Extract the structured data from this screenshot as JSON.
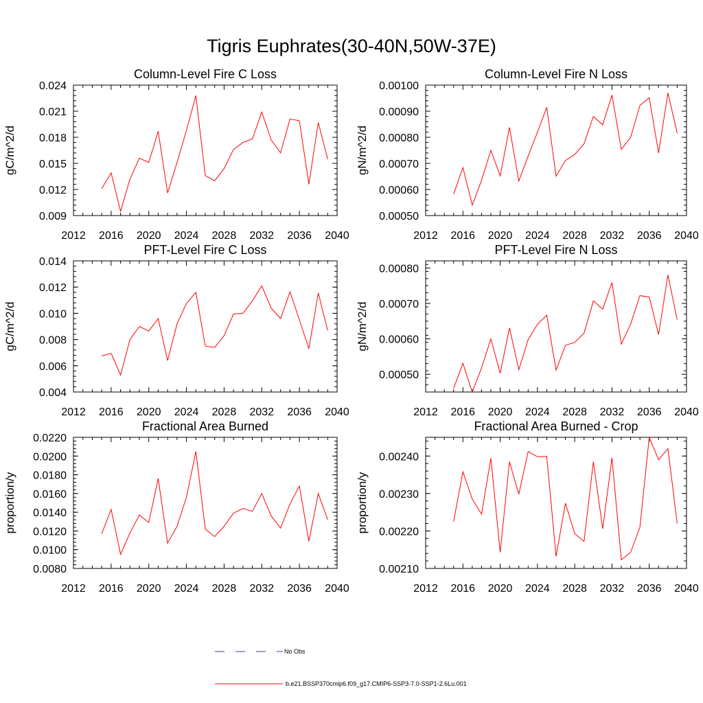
{
  "figure": {
    "title": "Tigris Euphrates(30-40N,50W-37E)"
  },
  "legend": {
    "obs_label": "No Obs",
    "model_label": "b.e21.BSSP370cmip6.f09_g17.CMIP6-SSP3-7.0-SSP1-2.6Lu.001",
    "model_color": "#ff0000",
    "obs_color": "#3a3aa0"
  },
  "chart_data": [
    {
      "type": "line",
      "title": "Column-Level Fire C Loss",
      "ylabel": "gC/m^2/d",
      "xlim": [
        2012,
        2040
      ],
      "ylim": [
        0.009,
        0.024
      ],
      "xticks": [
        "2012",
        "2016",
        "2020",
        "2024",
        "2028",
        "2032",
        "2036",
        "2040"
      ],
      "yticks": [
        "0.009",
        "0.012",
        "0.015",
        "0.018",
        "0.021",
        "0.024"
      ],
      "x": [
        2015,
        2016,
        2017,
        2018,
        2019,
        2020,
        2021,
        2022,
        2023,
        2024,
        2025,
        2026,
        2027,
        2028,
        2029,
        2030,
        2031,
        2032,
        2033,
        2034,
        2035,
        2036,
        2037,
        2038,
        2039
      ],
      "series": [
        {
          "values": [
            0.0121,
            0.0139,
            0.0095,
            0.0132,
            0.0156,
            0.0151,
            0.0187,
            0.0116,
            0.0151,
            0.0188,
            0.0228,
            0.0136,
            0.013,
            0.0144,
            0.0166,
            0.0174,
            0.0178,
            0.0209,
            0.0177,
            0.0162,
            0.0201,
            0.0199,
            0.0126,
            0.0197,
            0.0155
          ],
          "color": "#ff0000"
        }
      ]
    },
    {
      "type": "line",
      "title": "Column-Level Fire N Loss",
      "ylabel": "gN/m^2/d",
      "xlim": [
        2012,
        2040
      ],
      "ylim": [
        0.0005,
        0.001
      ],
      "xticks": [
        "2012",
        "2016",
        "2020",
        "2024",
        "2028",
        "2032",
        "2036",
        "2040"
      ],
      "yticks": [
        "0.00050",
        "0.00060",
        "0.00070",
        "0.00080",
        "0.00090",
        "0.00100"
      ],
      "x": [
        2015,
        2016,
        2017,
        2018,
        2019,
        2020,
        2021,
        2022,
        2023,
        2024,
        2025,
        2026,
        2027,
        2028,
        2029,
        2030,
        2031,
        2032,
        2033,
        2034,
        2035,
        2036,
        2037,
        2038,
        2039
      ],
      "series": [
        {
          "values": [
            0.000582,
            0.000684,
            0.00054,
            0.000635,
            0.00075,
            0.000652,
            0.000838,
            0.000632,
            0.000728,
            0.00082,
            0.000915,
            0.000651,
            0.000711,
            0.000734,
            0.000775,
            0.00088,
            0.000848,
            0.000962,
            0.000754,
            0.0008,
            0.000922,
            0.000952,
            0.00074,
            0.00097,
            0.000816
          ],
          "color": "#ff0000"
        }
      ]
    },
    {
      "type": "line",
      "title": "PFT-Level Fire C Loss",
      "ylabel": "gC/m^2/d",
      "xlim": [
        2012,
        2040
      ],
      "ylim": [
        0.004,
        0.014
      ],
      "xticks": [
        "2012",
        "2016",
        "2020",
        "2024",
        "2028",
        "2032",
        "2036",
        "2040"
      ],
      "yticks": [
        "0.004",
        "0.006",
        "0.008",
        "0.010",
        "0.012",
        "0.014"
      ],
      "x": [
        2015,
        2016,
        2017,
        2018,
        2019,
        2020,
        2021,
        2022,
        2023,
        2024,
        2025,
        2026,
        2027,
        2028,
        2029,
        2030,
        2031,
        2032,
        2033,
        2034,
        2035,
        2036,
        2037,
        2038,
        2039
      ],
      "series": [
        {
          "values": [
            0.00675,
            0.00695,
            0.0053,
            0.008,
            0.009,
            0.00865,
            0.0096,
            0.0064,
            0.0092,
            0.01075,
            0.0116,
            0.0075,
            0.0074,
            0.0083,
            0.00995,
            0.01,
            0.01095,
            0.0121,
            0.0104,
            0.0096,
            0.01165,
            0.0095,
            0.0073,
            0.01155,
            0.0087
          ],
          "color": "#ff0000"
        }
      ]
    },
    {
      "type": "line",
      "title": "PFT-Level Fire N Loss",
      "ylabel": "gN/m^2/d",
      "xlim": [
        2012,
        2040
      ],
      "ylim": [
        0.00045,
        0.00082
      ],
      "xticks": [
        "2012",
        "2016",
        "2020",
        "2024",
        "2028",
        "2032",
        "2036",
        "2040"
      ],
      "yticks": [
        "0.00050",
        "0.00060",
        "0.00070",
        "0.00080"
      ],
      "x": [
        2015,
        2016,
        2017,
        2018,
        2019,
        2020,
        2021,
        2022,
        2023,
        2024,
        2025,
        2026,
        2027,
        2028,
        2029,
        2030,
        2031,
        2032,
        2033,
        2034,
        2035,
        2036,
        2037,
        2038,
        2039
      ],
      "series": [
        {
          "values": [
            0.00046,
            0.000531,
            0.00045,
            0.000518,
            0.0006,
            0.000503,
            0.000631,
            0.000513,
            0.000598,
            0.000641,
            0.000667,
            0.000512,
            0.000582,
            0.00059,
            0.000616,
            0.000707,
            0.000684,
            0.000759,
            0.000585,
            0.000642,
            0.000722,
            0.000718,
            0.000612,
            0.00078,
            0.000654
          ],
          "color": "#ff0000"
        }
      ]
    },
    {
      "type": "line",
      "title": "Fractional Area Burned",
      "ylabel": "proportion/y",
      "xlim": [
        2012,
        2040
      ],
      "ylim": [
        0.008,
        0.022
      ],
      "xticks": [
        "2012",
        "2016",
        "2020",
        "2024",
        "2028",
        "2032",
        "2036",
        "2040"
      ],
      "yticks": [
        "0.0080",
        "0.0100",
        "0.0120",
        "0.0140",
        "0.0160",
        "0.0180",
        "0.0200",
        "0.0220"
      ],
      "x": [
        2015,
        2016,
        2017,
        2018,
        2019,
        2020,
        2021,
        2022,
        2023,
        2024,
        2025,
        2026,
        2027,
        2028,
        2029,
        2030,
        2031,
        2032,
        2033,
        2034,
        2035,
        2036,
        2037,
        2038,
        2039
      ],
      "series": [
        {
          "values": [
            0.0117,
            0.0143,
            0.0095,
            0.0118,
            0.0137,
            0.0129,
            0.0176,
            0.0107,
            0.0125,
            0.0156,
            0.0205,
            0.0122,
            0.0114,
            0.0125,
            0.0139,
            0.0144,
            0.0141,
            0.016,
            0.0136,
            0.0123,
            0.0149,
            0.0168,
            0.0109,
            0.016,
            0.0132
          ],
          "color": "#ff0000"
        }
      ]
    },
    {
      "type": "line",
      "title": "Fractional Area Burned - Crop",
      "ylabel": "proportion/y",
      "xlim": [
        2012,
        2040
      ],
      "ylim": [
        0.0021,
        0.00245
      ],
      "xticks": [
        "2012",
        "2016",
        "2020",
        "2024",
        "2028",
        "2032",
        "2036",
        "2040"
      ],
      "yticks": [
        "0.00210",
        "0.00220",
        "0.00230",
        "0.00240"
      ],
      "x": [
        2015,
        2016,
        2017,
        2018,
        2019,
        2020,
        2021,
        2022,
        2023,
        2024,
        2025,
        2026,
        2027,
        2028,
        2029,
        2030,
        2031,
        2032,
        2033,
        2034,
        2035,
        2036,
        2037,
        2038,
        2039
      ],
      "series": [
        {
          "values": [
            0.002225,
            0.002358,
            0.002285,
            0.002245,
            0.002394,
            0.002143,
            0.002385,
            0.002298,
            0.002412,
            0.002398,
            0.002399,
            0.002132,
            0.002274,
            0.002193,
            0.002172,
            0.002385,
            0.002206,
            0.002395,
            0.002123,
            0.002143,
            0.00221,
            0.00245,
            0.00239,
            0.00242,
            0.00222
          ],
          "color": "#ff0000"
        }
      ]
    }
  ]
}
